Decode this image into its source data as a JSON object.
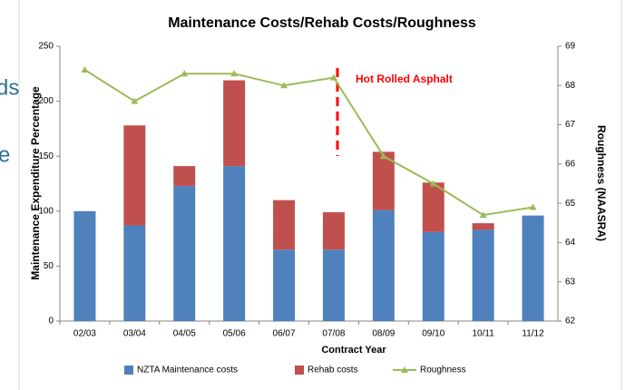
{
  "slide_text": [
    "ds",
    "e"
  ],
  "chart_data": {
    "type": "bar",
    "title": "Maintenance Costs/Rehab Costs/Roughness",
    "x_label": "Contract Year",
    "y_label": "Maintenance Expenditure Percentage",
    "y2_label": "Roughness (NAASRA)",
    "annotation": "Hot Rolled Asphalt",
    "categories": [
      "02/03",
      "03/04",
      "04/05",
      "05/06",
      "06/07",
      "07/08",
      "08/09",
      "09/10",
      "10/11",
      "11/12"
    ],
    "series": [
      {
        "name": "NZTA Maintenance costs",
        "type": "bar",
        "color": "#4f81bd",
        "values": [
          100,
          87,
          123,
          141,
          65,
          65,
          101,
          81,
          83,
          96
        ]
      },
      {
        "name": "Rehab costs",
        "type": "bar",
        "color": "#c0504d",
        "values": [
          0,
          91,
          18,
          78,
          45,
          34,
          53,
          45,
          6,
          0
        ]
      },
      {
        "name": "Roughness",
        "type": "line",
        "axis": "y2",
        "color": "#9bbb59",
        "values": [
          68.4,
          67.6,
          68.3,
          68.3,
          68.0,
          68.2,
          66.2,
          65.5,
          64.7,
          64.9
        ]
      }
    ],
    "stacked": true,
    "ylim": [
      0,
      250
    ],
    "yticks": [
      0,
      50,
      100,
      150,
      200,
      250
    ],
    "y2lim": [
      62,
      69
    ],
    "y2ticks": [
      62,
      63,
      64,
      65,
      66,
      67,
      68,
      69
    ],
    "grid": false,
    "legend": "bottom"
  }
}
